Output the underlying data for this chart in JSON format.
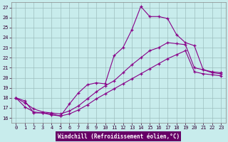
{
  "bg_color": "#c8ecec",
  "grid_color": "#9dbfbf",
  "line_color": "#880088",
  "xlabel": "Windchill (Refroidissement éolien,°C)",
  "xlabel_bg": "#660066",
  "xlabel_color": "#ffffff",
  "x": [
    0,
    1,
    2,
    3,
    4,
    5,
    6,
    7,
    8,
    9,
    10,
    11,
    12,
    13,
    14,
    15,
    16,
    17,
    18,
    19,
    20,
    21,
    22,
    23
  ],
  "line1": [
    18.0,
    17.7,
    16.5,
    16.5,
    16.3,
    16.2,
    17.4,
    18.5,
    19.3,
    19.5,
    19.4,
    22.2,
    23.0,
    24.8,
    27.1,
    26.1,
    26.1,
    25.9,
    24.3,
    23.5,
    23.2,
    20.8,
    20.5,
    20.4
  ],
  "line2": [
    18.0,
    17.5,
    16.9,
    16.6,
    16.5,
    16.4,
    16.7,
    17.2,
    17.9,
    18.6,
    19.2,
    19.7,
    20.5,
    21.3,
    22.0,
    22.7,
    23.0,
    23.5,
    23.4,
    23.3,
    21.0,
    20.8,
    20.6,
    20.5
  ],
  "line3": [
    18.0,
    17.1,
    16.6,
    16.5,
    16.4,
    16.2,
    16.4,
    16.8,
    17.3,
    17.9,
    18.4,
    18.9,
    19.4,
    19.9,
    20.4,
    20.9,
    21.4,
    21.9,
    22.3,
    22.7,
    20.6,
    20.4,
    20.3,
    20.2
  ],
  "ylim": [
    15.5,
    27.5
  ],
  "xlim": [
    -0.5,
    23.5
  ],
  "yticks": [
    16,
    17,
    18,
    19,
    20,
    21,
    22,
    23,
    24,
    25,
    26,
    27
  ],
  "xticks": [
    0,
    1,
    2,
    3,
    4,
    5,
    6,
    7,
    8,
    9,
    10,
    11,
    12,
    13,
    14,
    15,
    16,
    17,
    18,
    19,
    20,
    21,
    22,
    23
  ],
  "tick_fontsize": 5.0,
  "label_fontsize": 5.5
}
